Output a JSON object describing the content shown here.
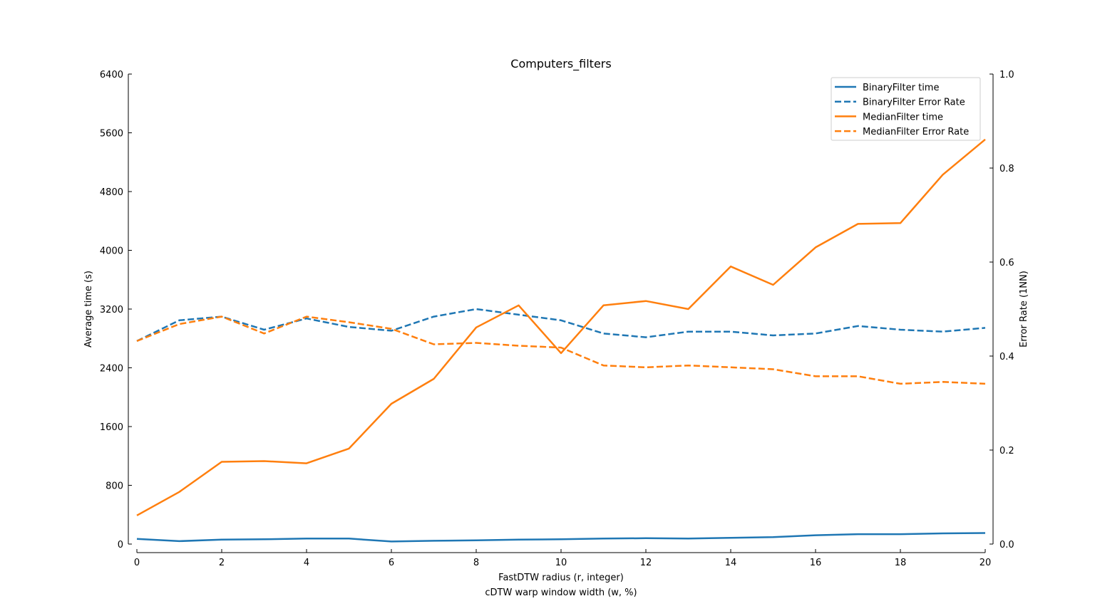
{
  "chart_data": {
    "type": "line",
    "title": "Computers_filters",
    "xlabel": "FastDTW radius (r, integer)",
    "xlabel_secondary": "cDTW warp window width (w, %)",
    "ylabel": "Average time (s)",
    "ylabel_right": "Error Rate (1NN)",
    "xlim": [
      0,
      20
    ],
    "ylim": [
      0,
      6400
    ],
    "ylim_right": [
      0,
      1.0
    ],
    "x_ticks": [
      "0",
      "2",
      "4",
      "6",
      "8",
      "10",
      "12",
      "14",
      "16",
      "18",
      "20"
    ],
    "y_ticks": [
      "0",
      "800",
      "1600",
      "2400",
      "3200",
      "4000",
      "4800",
      "5600",
      "6400"
    ],
    "y_ticks_right": [
      "0.0",
      "0.2",
      "0.4",
      "0.6",
      "0.8",
      "1.0"
    ],
    "grid": false,
    "legend_position": "top-right",
    "x": [
      0,
      1,
      2,
      3,
      4,
      5,
      6,
      7,
      8,
      9,
      10,
      11,
      12,
      13,
      14,
      15,
      16,
      17,
      18,
      19,
      20
    ],
    "series": [
      {
        "name": "BinaryFilter time",
        "axis": "left",
        "style": "solid",
        "color": "#1f77b4",
        "values": [
          70,
          40,
          60,
          65,
          75,
          75,
          35,
          45,
          50,
          60,
          65,
          75,
          80,
          75,
          85,
          95,
          120,
          135,
          135,
          145,
          150
        ]
      },
      {
        "name": "BinaryFilter Error Rate",
        "axis": "right",
        "style": "dashed",
        "color": "#1f77b4",
        "values": [
          0.432,
          0.476,
          0.484,
          0.456,
          0.48,
          0.462,
          0.454,
          0.484,
          0.5,
          0.488,
          0.476,
          0.448,
          0.44,
          0.452,
          0.452,
          0.444,
          0.448,
          0.464,
          0.456,
          0.452,
          0.46
        ]
      },
      {
        "name": "MedianFilter time",
        "axis": "left",
        "style": "solid",
        "color": "#ff7f0e",
        "values": [
          390,
          710,
          1120,
          1130,
          1100,
          1300,
          1910,
          2250,
          2950,
          3250,
          2600,
          3250,
          3310,
          3200,
          3780,
          3530,
          4040,
          4360,
          4370,
          5030,
          5510
        ]
      },
      {
        "name": "MedianFilter Error Rate",
        "axis": "right",
        "style": "dashed",
        "color": "#ff7f0e",
        "values": [
          0.432,
          0.468,
          0.484,
          0.448,
          0.484,
          0.472,
          0.458,
          0.425,
          0.428,
          0.422,
          0.418,
          0.38,
          0.376,
          0.38,
          0.376,
          0.372,
          0.357,
          0.357,
          0.341,
          0.345,
          0.341
        ]
      }
    ]
  }
}
